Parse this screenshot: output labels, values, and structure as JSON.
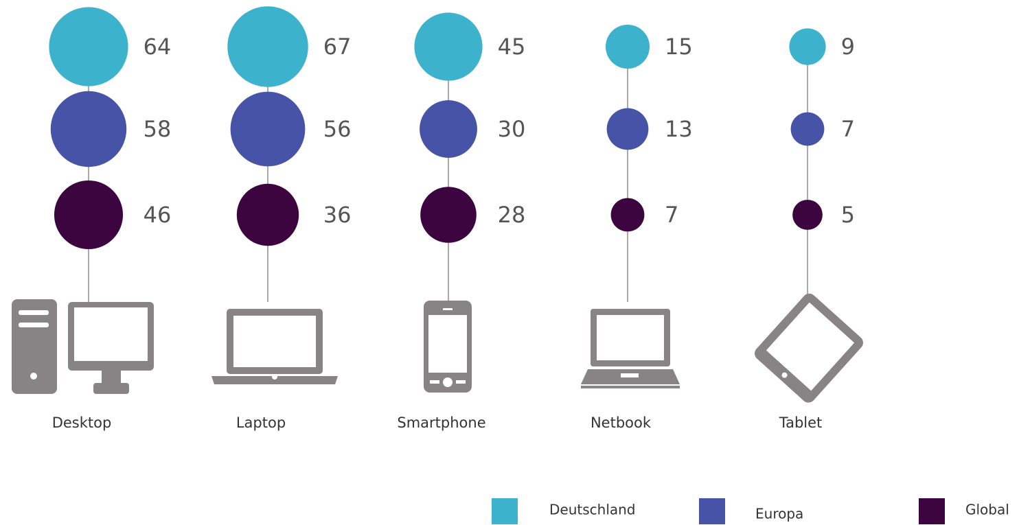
{
  "chart_data": {
    "type": "bubble",
    "categories": [
      "Desktop",
      "Laptop",
      "Smartphone",
      "Netbook",
      "Tablet"
    ],
    "series": [
      {
        "name": "Deutschland",
        "color": "#3db2cc",
        "values": [
          64,
          67,
          45,
          15,
          9
        ]
      },
      {
        "name": "Europa",
        "color": "#4753a6",
        "values": [
          58,
          56,
          30,
          13,
          7
        ]
      },
      {
        "name": "Global",
        "color": "#3d0540",
        "values": [
          46,
          36,
          28,
          7,
          5
        ]
      }
    ]
  }
}
